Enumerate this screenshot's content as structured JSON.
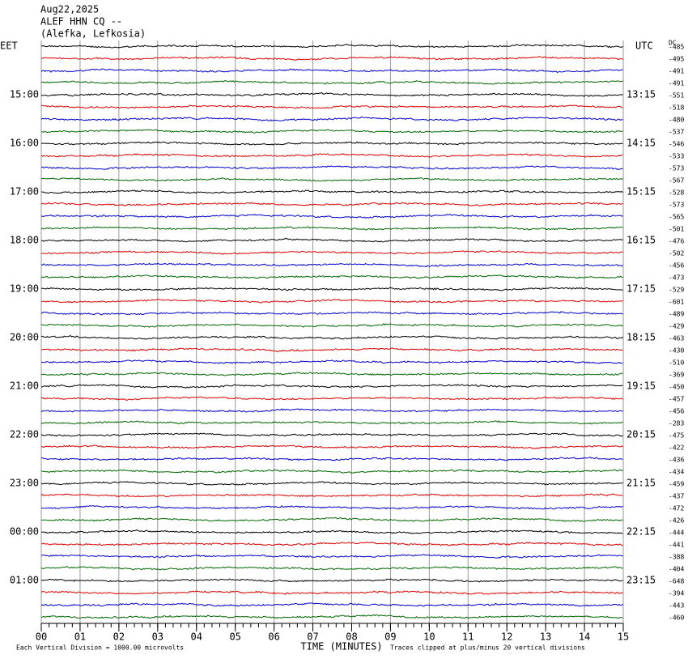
{
  "chart_data": {
    "type": "helicorder",
    "title_lines": [
      "Aug22,2025",
      "ALEF HHN CQ --",
      "(Alefka, Lefkosia)"
    ],
    "left_axis_label": "EET",
    "right_axis_label": "UTC",
    "dc_label": "DC",
    "x_label": "TIME (MINUTES)",
    "scale_note": "Each Vertical Division = 1000.00 microvolts",
    "clip_note": "Traces clipped at plus/minus 20 vertical divisions",
    "colors": [
      "#000000",
      "#dd0000",
      "#0000cc",
      "#006600"
    ],
    "xlim": [
      0,
      15
    ],
    "xticks": [
      {
        "value": 0,
        "label": "00"
      },
      {
        "value": 1,
        "label": "01"
      },
      {
        "value": 2,
        "label": "02"
      },
      {
        "value": 3,
        "label": "03"
      },
      {
        "value": 4,
        "label": "04"
      },
      {
        "value": 5,
        "label": "05"
      },
      {
        "value": 6,
        "label": "06"
      },
      {
        "value": 7,
        "label": "07"
      },
      {
        "value": 8,
        "label": "08"
      },
      {
        "value": 9,
        "label": "09"
      },
      {
        "value": 10,
        "label": "10"
      },
      {
        "value": 11,
        "label": "11"
      },
      {
        "value": 12,
        "label": "12"
      },
      {
        "value": 13,
        "label": "13"
      },
      {
        "value": 14,
        "label": "14"
      },
      {
        "value": 15,
        "label": "15"
      }
    ],
    "left_labels": [
      null,
      null,
      null,
      null,
      "15:00",
      null,
      null,
      null,
      "16:00",
      null,
      null,
      null,
      "17:00",
      null,
      null,
      null,
      "18:00",
      null,
      null,
      null,
      "19:00",
      null,
      null,
      null,
      "20:00",
      null,
      null,
      null,
      "21:00",
      null,
      null,
      null,
      "22:00",
      null,
      null,
      null,
      "23:00",
      null,
      null,
      null,
      "00:00",
      null,
      null,
      null,
      "01:00",
      null,
      null,
      null
    ],
    "right_labels": [
      null,
      null,
      null,
      null,
      "13:15",
      null,
      null,
      null,
      "14:15",
      null,
      null,
      null,
      "15:15",
      null,
      null,
      null,
      "16:15",
      null,
      null,
      null,
      "17:15",
      null,
      null,
      null,
      "18:15",
      null,
      null,
      null,
      "19:15",
      null,
      null,
      null,
      "20:15",
      null,
      null,
      null,
      "21:15",
      null,
      null,
      null,
      "22:15",
      null,
      null,
      null,
      "23:15",
      null,
      null,
      null
    ],
    "dc_offsets": [
      -485,
      -495,
      -491,
      -491,
      -551,
      -518,
      -480,
      -537,
      -546,
      -533,
      -573,
      -567,
      -528,
      -573,
      -565,
      -501,
      -476,
      -502,
      -456,
      -473,
      -529,
      -601,
      -489,
      -429,
      -463,
      -430,
      -510,
      -369,
      -450,
      -457,
      -456,
      -283,
      -475,
      -422,
      -436,
      -434,
      -459,
      -437,
      -472,
      -426,
      -444,
      -441,
      -388,
      -404,
      -648,
      -394,
      -443,
      -460
    ]
  }
}
